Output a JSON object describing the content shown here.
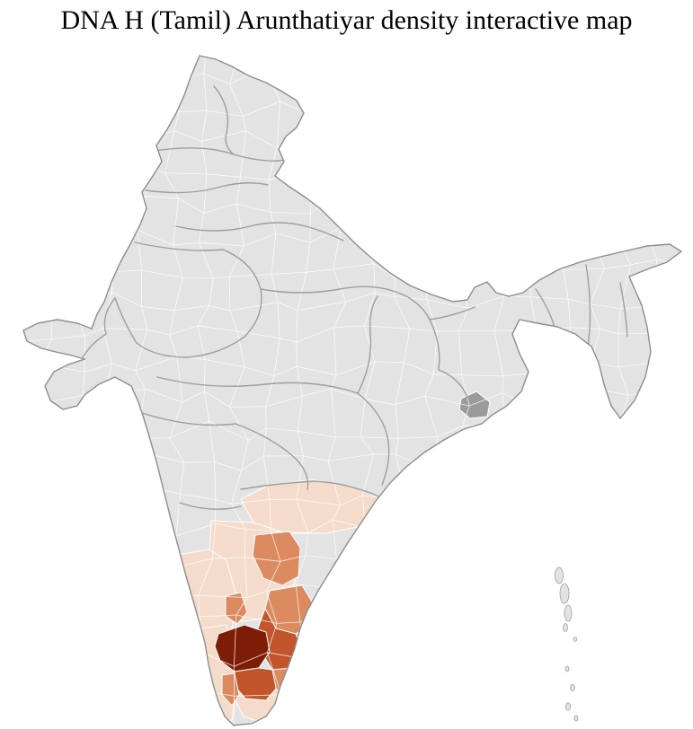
{
  "page": {
    "title": "DNA H (Tamil) Arunthatiyar density interactive map"
  },
  "map": {
    "kind": "india-district-choropleth",
    "density_levels": [
      "none",
      "low",
      "medium",
      "high",
      "very_high"
    ],
    "palette": {
      "base": "#e3e3e3",
      "low": "#f5dccа",
      "medium": "#dc8a5f",
      "high": "#c2552b",
      "very_high": "#7d1d05",
      "emphasis_gray": "#9b9b9b"
    },
    "strokes": {
      "district_border": "#ffffff",
      "state_border": "#9e9e9e",
      "country_outline": "#8d8d8d",
      "island_border": "#9e9e9e"
    }
  }
}
